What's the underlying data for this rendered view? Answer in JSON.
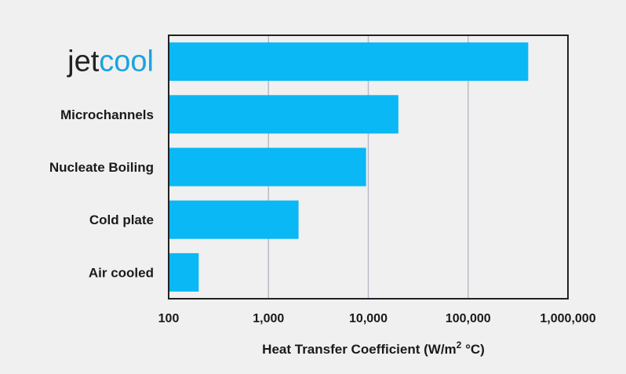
{
  "chart_data": {
    "type": "bar",
    "orientation": "horizontal",
    "title": "",
    "categories": [
      "jetcool",
      "Microchannels",
      "Nucleate Boiling",
      "Cold plate",
      "Air cooled"
    ],
    "values": [
      400000,
      20000,
      9500,
      2000,
      200
    ],
    "xlabel": "Heat Transfer Coefficient (W/m² °C)",
    "xlabel_parts": {
      "main": "Heat Transfer Coefficient (W/m",
      "sup": "2",
      "tail": " °C)"
    },
    "ylabel": "",
    "xscale": "log",
    "xlim": [
      100,
      1000000
    ],
    "xticks": [
      100,
      1000,
      10000,
      100000,
      1000000
    ],
    "xtick_labels": [
      "100",
      "1,000",
      "10,000",
      "100,000",
      "1,000,000"
    ],
    "grid": "vertical",
    "logo": {
      "dark": "jet",
      "accent": "cool"
    },
    "colors": {
      "bar": "#0ab8f5",
      "logo_dark": "#222222",
      "logo_accent": "#1aa3df",
      "grid": "#b8bcc8",
      "frame": "#222222"
    }
  }
}
